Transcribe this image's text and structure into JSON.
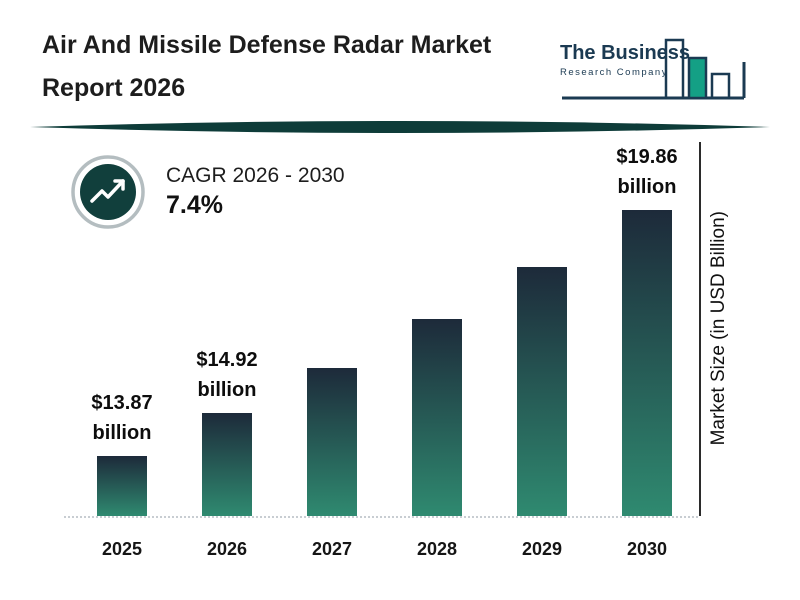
{
  "page": {
    "title_line1": "Air And Missile Defense Radar Market",
    "title_line2": "Report 2026"
  },
  "logo": {
    "line1": "The Business",
    "line2": "Research Company"
  },
  "cagr": {
    "label": "CAGR 2026 - 2030",
    "value": "7.4%"
  },
  "chart_data": {
    "type": "bar",
    "title": "Air And Missile Defense Radar Market Report 2026",
    "categories": [
      "2025",
      "2026",
      "2027",
      "2028",
      "2029",
      "2030"
    ],
    "values": [
      13.87,
      14.92,
      16.02,
      17.21,
      18.48,
      19.86
    ],
    "unit": "USD billion",
    "xlabel": "",
    "ylabel": "Market Size (in USD Billion)",
    "bar_value_labels": [
      {
        "amount": "$13.87",
        "unit": "billion"
      },
      {
        "amount": "$14.92",
        "unit": "billion"
      },
      null,
      null,
      null,
      {
        "amount": "$19.86",
        "unit": "billion"
      }
    ],
    "ylim_visual": [
      12.4,
      19.86
    ],
    "grid": false,
    "legend": "none",
    "colors": {
      "bar_gradient_top": "#1d2a3a",
      "bar_gradient_bottom": "#2f8a70",
      "accent_dark_teal": "#0e3c39",
      "logo_navy": "#1b3a52",
      "logo_teal": "#14a085",
      "text": "#1a1a1a",
      "baseline_dotted": "#c8cdd2"
    }
  }
}
